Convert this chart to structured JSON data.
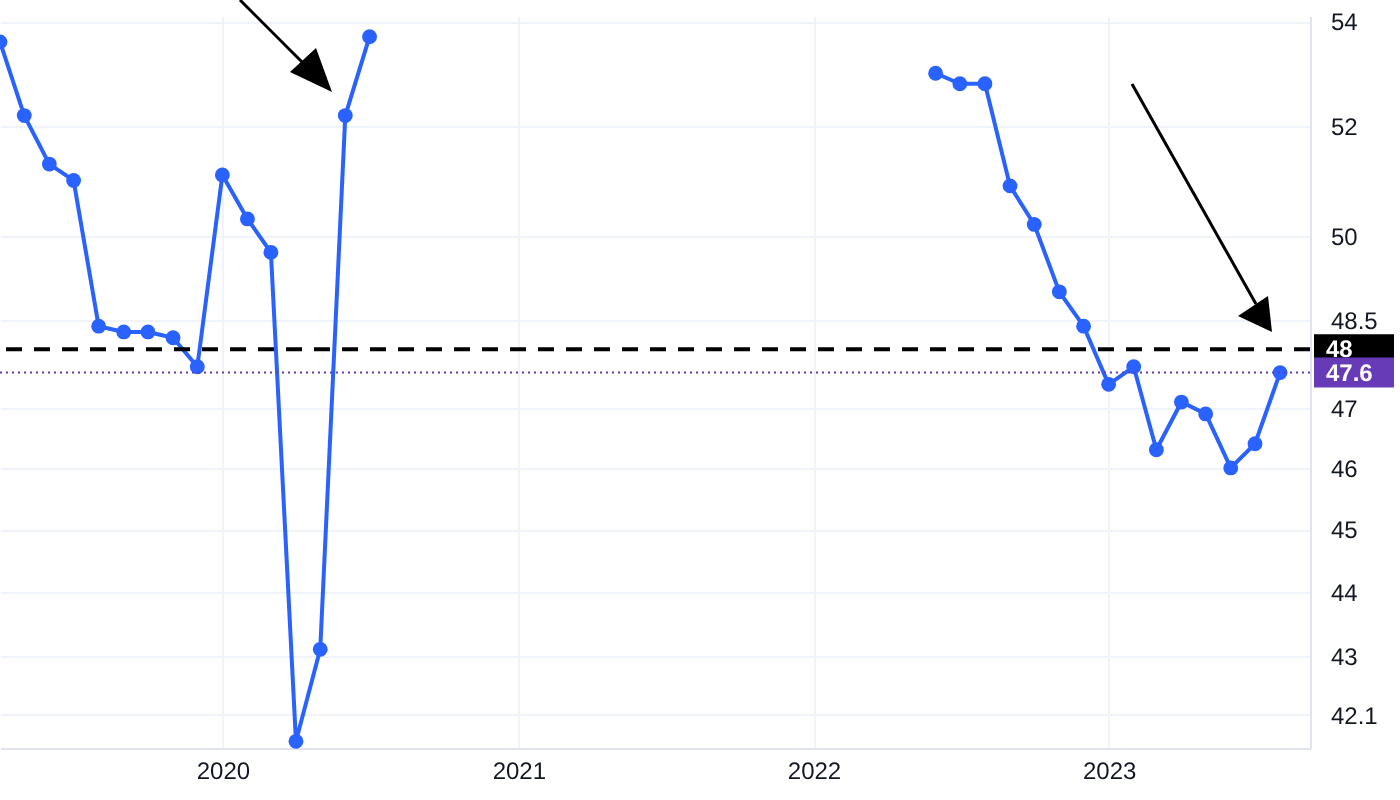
{
  "chart_data": {
    "type": "line",
    "x": [
      "2019-04",
      "2019-05",
      "2019-06",
      "2019-07",
      "2019-08",
      "2019-09",
      "2019-10",
      "2019-11",
      "2019-12",
      "2020-01",
      "2020-02",
      "2020-03",
      "2020-04",
      "2020-05",
      "2020-06",
      "2020-07",
      "2020-08",
      "2022-06",
      "2022-07",
      "2022-08",
      "2022-09",
      "2022-10",
      "2022-11",
      "2022-12",
      "2023-01",
      "2023-02",
      "2023-03",
      "2023-04",
      "2023-05",
      "2023-06",
      "2023-07",
      "2023-08"
    ],
    "series": [
      {
        "color": "#2962ff",
        "values": [
          53.6,
          52.2,
          51.3,
          51.0,
          48.4,
          48.3,
          48.3,
          48.2,
          47.7,
          51.1,
          50.3,
          49.7,
          41.7,
          43.1,
          52.2,
          53.7,
          null,
          53.0,
          52.8,
          52.8,
          50.9,
          50.2,
          49.0,
          48.4,
          47.4,
          47.7,
          46.3,
          47.1,
          46.9,
          46.0,
          46.4,
          47.6
        ]
      }
    ],
    "xlim": [
      "2019-04-01",
      "2023-09-07"
    ],
    "xticks": [
      "2020",
      "2021",
      "2022",
      "2023"
    ],
    "ylim": [
      41.6,
      54.1
    ],
    "yticks": [
      54,
      52,
      50,
      48.5,
      47,
      46,
      45,
      44,
      43,
      42.1
    ],
    "log": true,
    "grid": true,
    "marker": "circle",
    "line_style": "solid",
    "ref_lines": [
      {
        "axis": "y",
        "value": 48,
        "label": "48",
        "color": "#000000",
        "line_style": "dashed"
      },
      {
        "axis": "y",
        "value": 47.6,
        "label": "47.6",
        "color": "#673ab7",
        "line_style": "dotted"
      }
    ]
  }
}
